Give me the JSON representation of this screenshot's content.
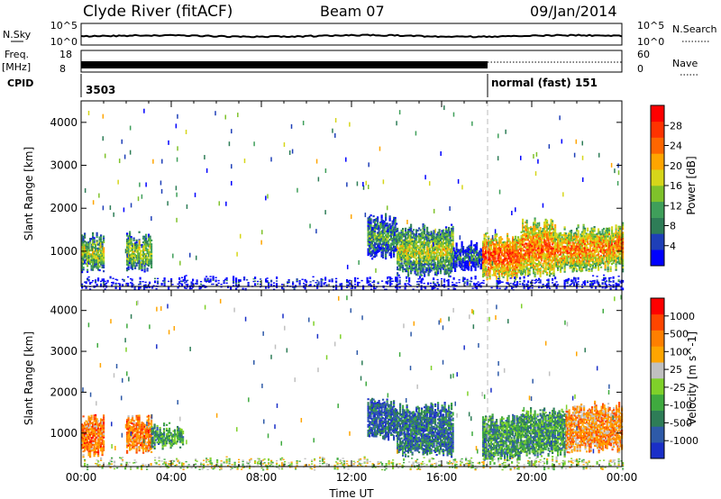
{
  "header": {
    "station": "Clyde River (fitACF)",
    "beam": "Beam 07",
    "date": "09/Jan/2014"
  },
  "strips": {
    "nsky_label": "N.Sky",
    "nsky_tick_hi": "10^5",
    "nsky_tick_lo": "10^0",
    "nsearch_label": "N.Search",
    "nsearch_tick_hi": "10^5",
    "nsearch_tick_lo": "10^0",
    "freq_label": "Freq.",
    "freq_unit": "[MHz]",
    "freq_tick_hi": "18",
    "freq_tick_lo": "8",
    "nave_label": "Nave",
    "nave_tick_hi": "60",
    "nave_tick_lo": "0",
    "cpid_label": "CPID",
    "cpid_first": "3503",
    "cpid_second": "normal (fast) 151"
  },
  "colors": {
    "power": [
      "#0000ff",
      "#1e3fb8",
      "#2e7d57",
      "#3f9f5a",
      "#7fc22b",
      "#d6d61a",
      "#ffa500",
      "#ff6600",
      "#ff3300",
      "#ff0000"
    ],
    "velocity": [
      "#1a2fc8",
      "#2e5aa8",
      "#2e7d57",
      "#3faa3f",
      "#7fd12a",
      "#c0c0c0",
      "#ffa500",
      "#ff7f00",
      "#ff4500",
      "#ff0000"
    ]
  },
  "chart_data": [
    {
      "type": "heatmap",
      "panel": "power",
      "ylabel": "Slant Range [km]",
      "xlabel": "",
      "x_tick_labels": [],
      "y_ticks": [
        1000,
        2000,
        3000,
        4000
      ],
      "ylim": [
        180,
        4500
      ],
      "xlim_hours": [
        0,
        24
      ],
      "colorbar_label": "Power [dB]",
      "colorbar_ticks": [
        "4",
        "8",
        "12",
        "16",
        "20",
        "24",
        "28"
      ],
      "mode_change_hour": 18.0,
      "echo_regions": [
        {
          "t_start": 0.0,
          "t_end": 1.0,
          "r_low": 600,
          "r_high": 1300,
          "level": 0.55
        },
        {
          "t_start": 2.0,
          "t_end": 3.1,
          "r_low": 600,
          "r_high": 1300,
          "level": 0.55
        },
        {
          "t_start": 12.7,
          "t_end": 14.0,
          "r_low": 900,
          "r_high": 1700,
          "level": 0.4
        },
        {
          "t_start": 14.0,
          "t_end": 16.5,
          "r_low": 500,
          "r_high": 1500,
          "level": 0.55
        },
        {
          "t_start": 16.5,
          "t_end": 17.8,
          "r_low": 600,
          "r_high": 1100,
          "level": 0.3
        },
        {
          "t_start": 17.8,
          "t_end": 19.5,
          "r_low": 400,
          "r_high": 1300,
          "level": 0.85
        },
        {
          "t_start": 19.5,
          "t_end": 21.0,
          "r_low": 500,
          "r_high": 1600,
          "level": 0.8
        },
        {
          "t_start": 21.0,
          "t_end": 24.0,
          "r_low": 600,
          "r_high": 1500,
          "level": 0.75
        },
        {
          "t_start": 0.0,
          "t_end": 24.0,
          "r_low": 190,
          "r_high": 280,
          "level": 0.15
        }
      ]
    },
    {
      "type": "heatmap",
      "panel": "velocity",
      "ylabel": "Slant Range [km]",
      "xlabel": "Time UT",
      "x_tick_labels": [
        "00:00",
        "04:00",
        "08:00",
        "12:00",
        "16:00",
        "20:00",
        "00:00"
      ],
      "y_ticks": [
        1000,
        2000,
        3000,
        4000
      ],
      "ylim": [
        180,
        4500
      ],
      "xlim_hours": [
        0,
        24
      ],
      "colorbar_label": "Velocity [m s^-1]",
      "colorbar_ticks": [
        "-1000",
        "-500",
        "-100",
        "-25",
        "25",
        "100",
        "500",
        "1000"
      ],
      "mode_change_hour": 18.0,
      "echo_regions": [
        {
          "t_start": 0.0,
          "t_end": 1.0,
          "r_low": 500,
          "r_high": 1300,
          "level": 0.75
        },
        {
          "t_start": 2.0,
          "t_end": 3.1,
          "r_low": 600,
          "r_high": 1300,
          "level": 0.75
        },
        {
          "t_start": 3.1,
          "t_end": 4.5,
          "r_low": 700,
          "r_high": 1100,
          "level": 0.3
        },
        {
          "t_start": 12.7,
          "t_end": 14.0,
          "r_low": 900,
          "r_high": 1700,
          "level": 0.15
        },
        {
          "t_start": 14.0,
          "t_end": 16.5,
          "r_low": 500,
          "r_high": 1600,
          "level": 0.2
        },
        {
          "t_start": 17.8,
          "t_end": 19.5,
          "r_low": 400,
          "r_high": 1300,
          "level": 0.3
        },
        {
          "t_start": 19.5,
          "t_end": 21.5,
          "r_low": 500,
          "r_high": 1500,
          "level": 0.3
        },
        {
          "t_start": 21.5,
          "t_end": 24.0,
          "r_low": 600,
          "r_high": 1600,
          "level": 0.7
        },
        {
          "t_start": 0.0,
          "t_end": 24.0,
          "r_low": 190,
          "r_high": 260,
          "level": 0.5
        }
      ]
    }
  ]
}
